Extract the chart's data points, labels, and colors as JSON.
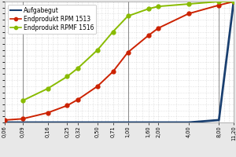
{
  "x_labels": [
    "0,06",
    "0,09",
    "0,16",
    "0,25",
    "0,32",
    "0,50",
    "0,71",
    "1,00",
    "1,60",
    "2,00",
    "4,00",
    "8,00",
    "11,20"
  ],
  "x_vals": [
    0.06,
    0.09,
    0.16,
    0.25,
    0.32,
    0.5,
    0.71,
    1.0,
    1.6,
    2.0,
    4.0,
    8.0,
    11.2
  ],
  "aufgabegut": [
    0,
    0,
    0,
    0,
    0,
    0,
    0,
    0,
    0,
    0,
    0,
    2,
    100
  ],
  "rpm1513": [
    2,
    3,
    8,
    14,
    19,
    30,
    42,
    58,
    72,
    78,
    90,
    97,
    100
  ],
  "rpmf1516": [
    null,
    18,
    28,
    38,
    45,
    60,
    75,
    88,
    94,
    96,
    98,
    100,
    100
  ],
  "color_aufgabegut": "#1a3f6f",
  "color_rpm1513": "#cc2200",
  "color_rpmf1516": "#88bb00",
  "legend_labels": [
    "Aufgabegut",
    "Endprodukt RPM 1513",
    "Endprodukt RPMF 1516"
  ],
  "plot_bg": "#ffffff",
  "fig_bg": "#e8e8e8",
  "grid_color": "#c8c8c8",
  "vline_positions": [
    0.09,
    1.0,
    8.0
  ],
  "legend_fontsize": 5.5,
  "tick_fontsize": 4.8,
  "linewidth_main": 1.4,
  "linewidth_aufgabe": 2.0,
  "markersize": 3.5
}
